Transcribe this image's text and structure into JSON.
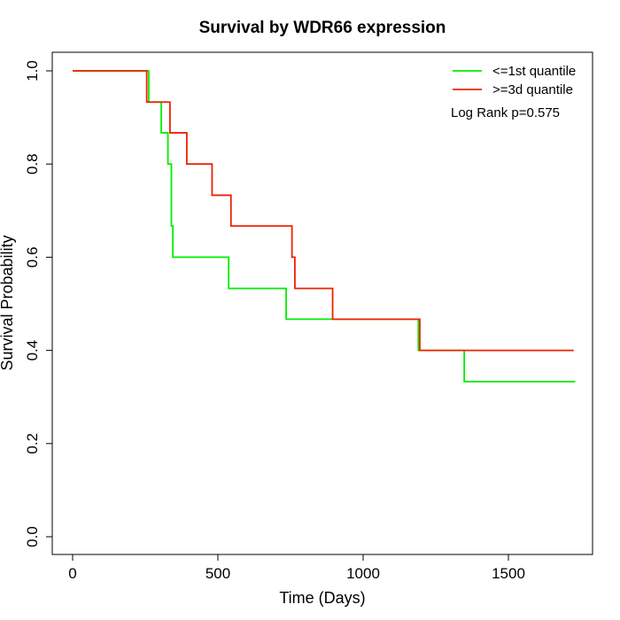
{
  "chart_data": {
    "type": "line",
    "step": true,
    "title": "Survival by WDR66 expression",
    "xlabel": "Time (Days)",
    "ylabel": "Survival Probability",
    "xlim": [
      0,
      1750
    ],
    "ylim": [
      0,
      1
    ],
    "x_ticks": [
      0,
      500,
      1000,
      1500
    ],
    "y_ticks": [
      0.0,
      0.2,
      0.4,
      0.6,
      0.8,
      1.0
    ],
    "x_tick_labels": [
      "0",
      "500",
      "1000",
      "1500"
    ],
    "y_tick_labels": [
      "0.0",
      "0.2",
      "0.4",
      "0.6",
      "0.8",
      "1.0"
    ],
    "legend_position": "top-right",
    "annotation": "Log Rank p=0.575",
    "series": [
      {
        "name": "<=1st quantile",
        "color": "#00ee00",
        "x": [
          0,
          262,
          305,
          328,
          340,
          345,
          537,
          735,
          900,
          1190,
          1348,
          1730
        ],
        "y": [
          1.0,
          0.933,
          0.867,
          0.8,
          0.667,
          0.6,
          0.533,
          0.467,
          0.467,
          0.4,
          0.333,
          0.333
        ]
      },
      {
        "name": ">=3d quantile",
        "color": "#ee2200",
        "x": [
          0,
          255,
          335,
          393,
          480,
          545,
          755,
          765,
          895,
          1195,
          1725
        ],
        "y": [
          1.0,
          0.933,
          0.867,
          0.8,
          0.733,
          0.667,
          0.6,
          0.533,
          0.467,
          0.4,
          0.4
        ]
      }
    ]
  }
}
